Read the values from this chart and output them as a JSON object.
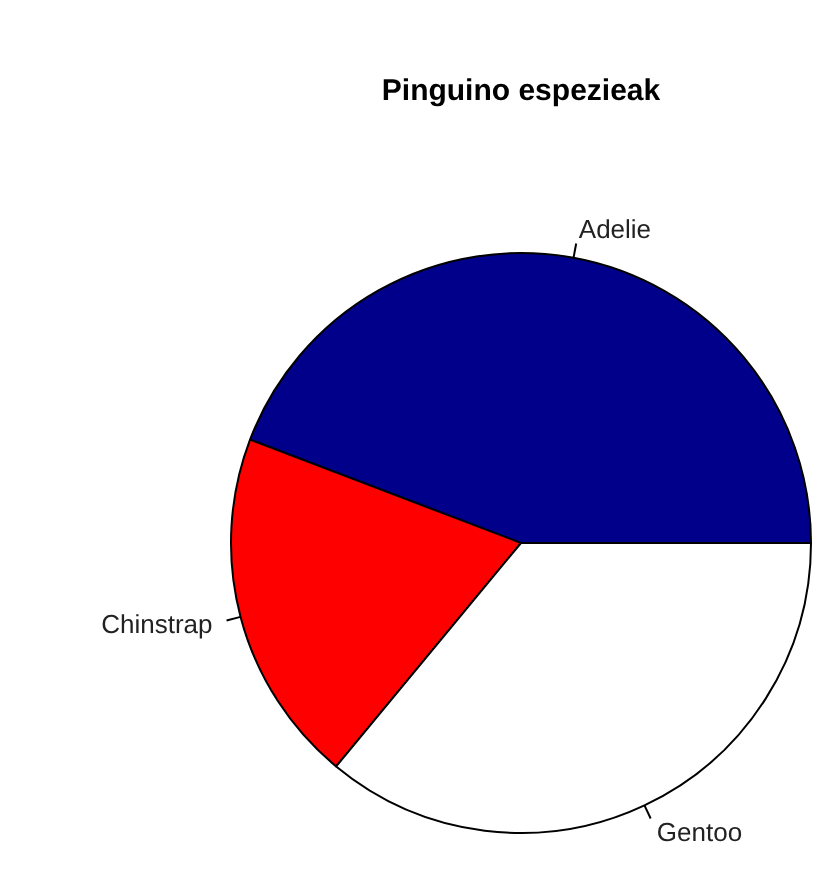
{
  "chart_data": {
    "type": "pie",
    "title": "Pinguino espezieak",
    "categories": [
      "Adelie",
      "Chinstrap",
      "Gentoo"
    ],
    "values": [
      44.2,
      19.8,
      36.0
    ],
    "colors": [
      "#00008b",
      "#ff0000",
      "#ffffff"
    ]
  }
}
